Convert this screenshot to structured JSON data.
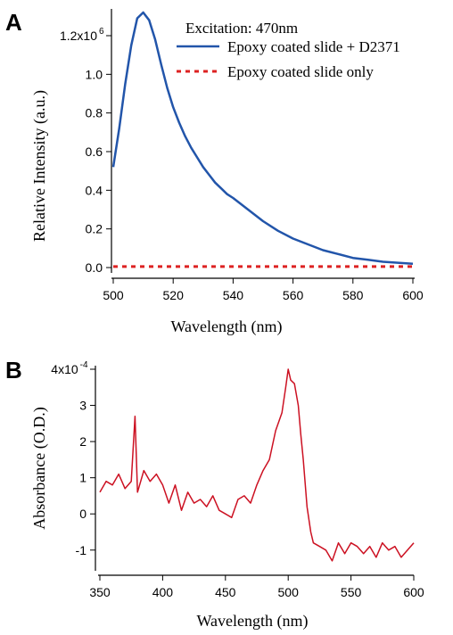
{
  "chart_data": [
    {
      "panel": "A",
      "type": "line",
      "xlabel": "Wavelength (nm)",
      "ylabel": "Relative Intensity (a.u.)",
      "xlim": [
        500,
        600
      ],
      "ylim": [
        0,
        1.32
      ],
      "x_ticks": [
        500,
        520,
        540,
        560,
        580,
        600
      ],
      "y_ticks": [
        0.0,
        0.2,
        0.4,
        0.6,
        0.8,
        1.0,
        1.2
      ],
      "y_tick_labels": [
        "0.0",
        "0.2",
        "0.4",
        "0.6",
        "0.8",
        "1.0",
        "1.2x10"
      ],
      "y_tick_top_exponent": "6",
      "legend_title": "Excitation: 470nm",
      "legend_position": "top-right",
      "colors": {
        "blue": "#2255aa",
        "red": "#dd2222"
      },
      "series": [
        {
          "name": "Epoxy coated slide + D2371",
          "color": "#2255aa",
          "style": "solid",
          "x": [
            500,
            502,
            504,
            506,
            508,
            510,
            512,
            514,
            516,
            518,
            520,
            522,
            524,
            526,
            528,
            530,
            532,
            534,
            536,
            538,
            540,
            545,
            550,
            555,
            560,
            565,
            570,
            575,
            580,
            585,
            590,
            595,
            600
          ],
          "y": [
            0.52,
            0.72,
            0.95,
            1.15,
            1.29,
            1.32,
            1.28,
            1.18,
            1.05,
            0.93,
            0.83,
            0.75,
            0.68,
            0.62,
            0.57,
            0.52,
            0.48,
            0.44,
            0.41,
            0.38,
            0.36,
            0.3,
            0.24,
            0.19,
            0.15,
            0.12,
            0.09,
            0.07,
            0.05,
            0.04,
            0.03,
            0.025,
            0.02
          ]
        },
        {
          "name": "Epoxy coated slide only",
          "color": "#dd2222",
          "style": "dashed",
          "x": [
            500,
            600
          ],
          "y": [
            0.005,
            0.005
          ]
        }
      ]
    },
    {
      "panel": "B",
      "type": "line",
      "xlabel": "Wavelength (nm)",
      "ylabel": "Absorbance (O.D.)",
      "xlim": [
        350,
        600
      ],
      "ylim": [
        -1.4,
        4.0
      ],
      "x_ticks": [
        350,
        400,
        450,
        500,
        550,
        600
      ],
      "y_ticks": [
        -1,
        0,
        1,
        2,
        3,
        4
      ],
      "y_tick_labels": [
        "-1",
        "0",
        "1",
        "2",
        "3",
        "4x10"
      ],
      "y_tick_top_exponent": "-4",
      "series": [
        {
          "color": "#cc1122",
          "style": "solid",
          "x": [
            350,
            355,
            360,
            365,
            370,
            375,
            378,
            380,
            385,
            390,
            395,
            400,
            405,
            410,
            415,
            420,
            425,
            430,
            435,
            440,
            445,
            450,
            455,
            460,
            465,
            470,
            475,
            480,
            485,
            490,
            495,
            498,
            500,
            502,
            505,
            508,
            510,
            512,
            515,
            518,
            520,
            525,
            530,
            535,
            540,
            545,
            550,
            555,
            560,
            565,
            570,
            575,
            580,
            585,
            590,
            595,
            600
          ],
          "y": [
            0.6,
            0.9,
            0.8,
            1.1,
            0.7,
            0.9,
            2.7,
            0.6,
            1.2,
            0.9,
            1.1,
            0.8,
            0.3,
            0.8,
            0.1,
            0.6,
            0.3,
            0.4,
            0.2,
            0.5,
            0.1,
            0.0,
            -0.1,
            0.4,
            0.5,
            0.3,
            0.8,
            1.2,
            1.5,
            2.3,
            2.8,
            3.5,
            4.0,
            3.7,
            3.6,
            3.0,
            2.2,
            1.5,
            0.2,
            -0.5,
            -0.8,
            -0.9,
            -1.0,
            -1.3,
            -0.8,
            -1.1,
            -0.8,
            -0.9,
            -1.1,
            -0.9,
            -1.2,
            -0.8,
            -1.0,
            -0.9,
            -1.2,
            -1.0,
            -0.8
          ]
        }
      ]
    }
  ]
}
